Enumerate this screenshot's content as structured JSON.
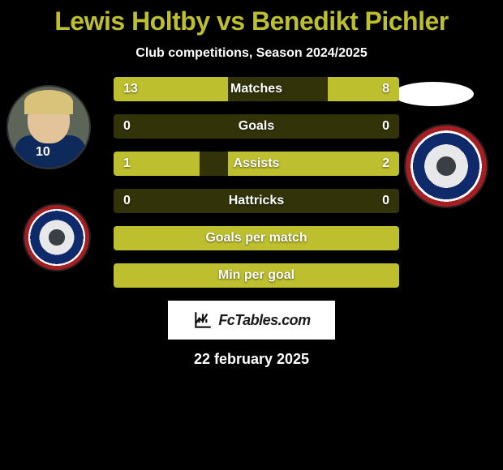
{
  "title_color": "#bdbf2e",
  "title": "Lewis Holtby vs Benedikt Pichler",
  "subtitle": "Club competitions, Season 2024/2025",
  "player_left_jersey_number": "10",
  "stats": [
    {
      "label": "Matches",
      "l": "13",
      "r": "8",
      "lw": 40,
      "rw": 25
    },
    {
      "label": "Goals",
      "l": "0",
      "r": "0",
      "lw": 0,
      "rw": 0
    },
    {
      "label": "Assists",
      "l": "1",
      "r": "2",
      "lw": 30,
      "rw": 60
    },
    {
      "label": "Hattricks",
      "l": "0",
      "r": "0",
      "lw": 0,
      "rw": 0
    }
  ],
  "wide_stats": [
    {
      "label": "Goals per match"
    },
    {
      "label": "Min per goal"
    }
  ],
  "brand": "FcTables.com",
  "date": "22 february 2025",
  "accent": "#bdbf2e",
  "track_color": "#33330a",
  "bg": "#000000"
}
